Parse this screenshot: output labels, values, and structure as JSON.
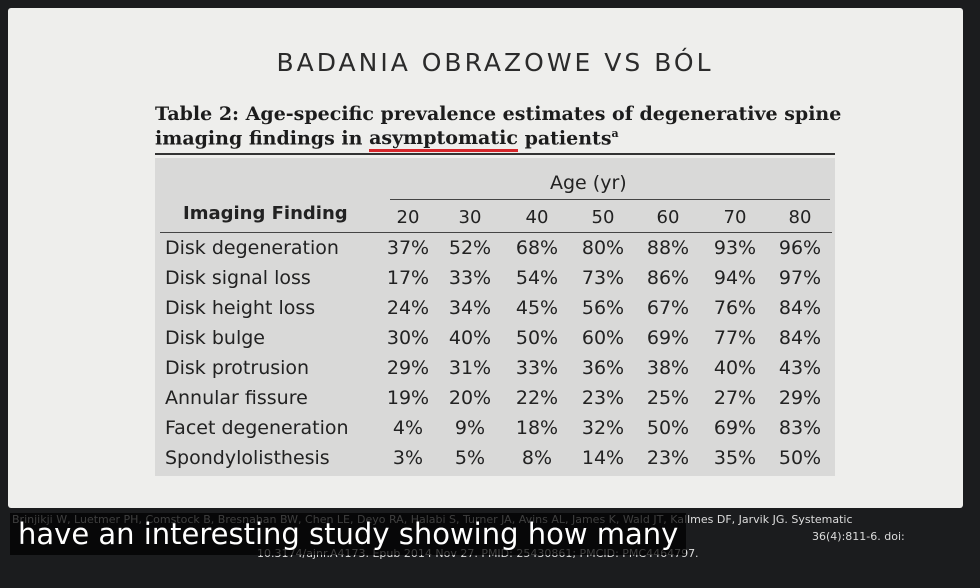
{
  "slide_title": "BADANIA OBRAZOWE VS BÓL",
  "caption": {
    "line1": "Table 2: Age-specific prevalence estimates of degenerative spine",
    "line2_start": "imaging findings in",
    "highlight": "asymptomatic",
    "line2_end": "patients",
    "superscript": "a"
  },
  "table": {
    "group_header": "Age (yr)",
    "columns": [
      "Imaging Finding",
      "20",
      "30",
      "40",
      "50",
      "60",
      "70",
      "80"
    ],
    "rows": [
      [
        "Disk degeneration",
        "37%",
        "52%",
        "68%",
        "80%",
        "88%",
        "93%",
        "96%"
      ],
      [
        "Disk signal loss",
        "17%",
        "33%",
        "54%",
        "73%",
        "86%",
        "94%",
        "97%"
      ],
      [
        "Disk height loss",
        "24%",
        "34%",
        "45%",
        "56%",
        "67%",
        "76%",
        "84%"
      ],
      [
        "Disk bulge",
        "30%",
        "40%",
        "50%",
        "60%",
        "69%",
        "77%",
        "84%"
      ],
      [
        "Disk protrusion",
        "29%",
        "31%",
        "33%",
        "36%",
        "38%",
        "40%",
        "43%"
      ],
      [
        "Annular fissure",
        "19%",
        "20%",
        "22%",
        "23%",
        "25%",
        "27%",
        "29%"
      ],
      [
        "Facet degeneration",
        "4%",
        "9%",
        "18%",
        "32%",
        "50%",
        "69%",
        "83%"
      ],
      [
        "Spondylolisthesis",
        "3%",
        "5%",
        "8%",
        "14%",
        "23%",
        "35%",
        "50%"
      ]
    ]
  },
  "reference": [
    "Brinjikji W, Luetmer PH, Comstock B, Bresnahan BW, Chen LE, Deyo RA, Halabi S, Turner JA, Avins AL, James K, Wald JT, Kallmes DF, Jarvik JG. Systematic",
    "36(4):811-6. doi:",
    "10.3174/ajnr.A4173. Epub 2014 Nov 27. PMID: 25430861; PMCID: PMC4464797."
  ],
  "subtitle_overlay": "have an interesting study showing how many"
}
